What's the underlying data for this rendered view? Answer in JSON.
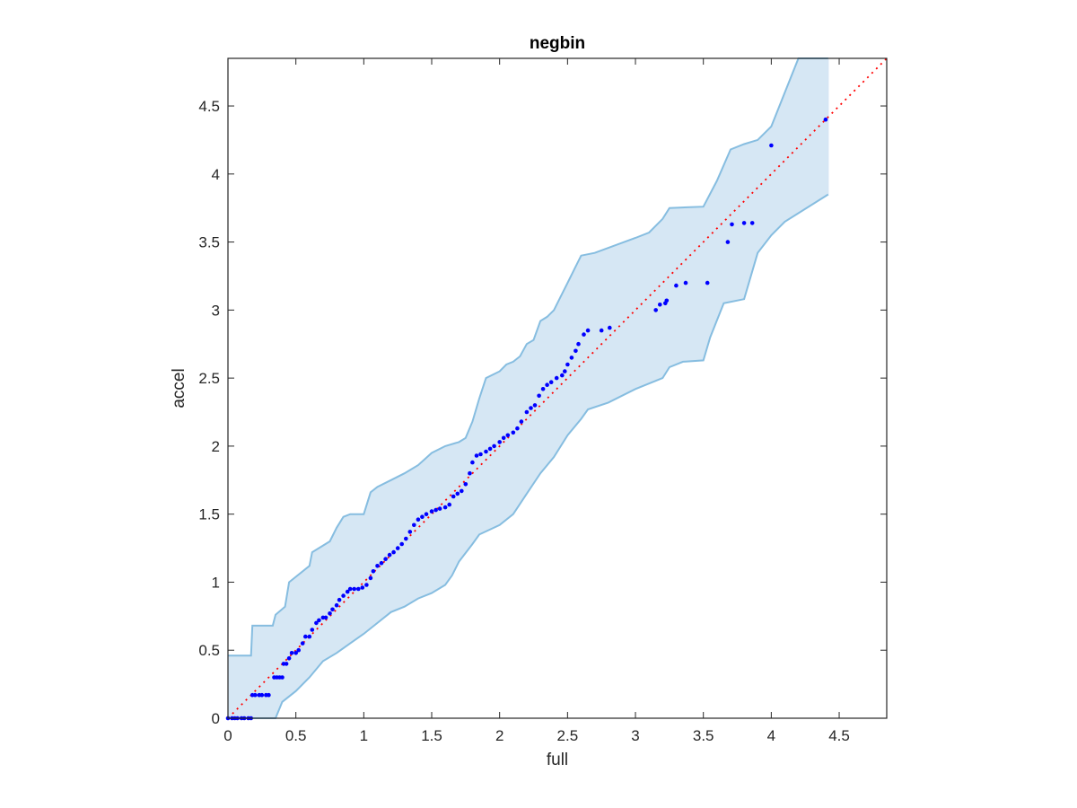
{
  "chart_data": {
    "type": "scatter",
    "title": "negbin",
    "xlabel": "full",
    "ylabel": "accel",
    "xlim": [
      0,
      4.85
    ],
    "ylim": [
      0,
      4.85
    ],
    "xticks": [
      "0",
      "0.5",
      "1",
      "1.5",
      "2",
      "2.5",
      "3",
      "3.5",
      "4",
      "4.5"
    ],
    "yticks": [
      "0",
      "0.5",
      "1",
      "1.5",
      "2",
      "2.5",
      "3",
      "3.5",
      "4",
      "4.5"
    ],
    "grid": false,
    "reference_line": {
      "from": [
        0,
        0
      ],
      "to": [
        4.85,
        4.85
      ],
      "style": "dotted",
      "color": "#ff0000"
    },
    "band": {
      "fill": "#d6e7f4",
      "edge": "#86bde0",
      "upper": [
        [
          0,
          0.46
        ],
        [
          0.17,
          0.46
        ],
        [
          0.18,
          0.68
        ],
        [
          0.33,
          0.68
        ],
        [
          0.35,
          0.76
        ],
        [
          0.42,
          0.82
        ],
        [
          0.45,
          1.0
        ],
        [
          0.6,
          1.12
        ],
        [
          0.62,
          1.22
        ],
        [
          0.75,
          1.3
        ],
        [
          0.8,
          1.4
        ],
        [
          0.85,
          1.48
        ],
        [
          0.9,
          1.5
        ],
        [
          1.0,
          1.5
        ],
        [
          1.05,
          1.66
        ],
        [
          1.1,
          1.7
        ],
        [
          1.2,
          1.75
        ],
        [
          1.3,
          1.8
        ],
        [
          1.4,
          1.86
        ],
        [
          1.5,
          1.95
        ],
        [
          1.6,
          2.0
        ],
        [
          1.7,
          2.03
        ],
        [
          1.75,
          2.06
        ],
        [
          1.8,
          2.18
        ],
        [
          1.85,
          2.35
        ],
        [
          1.9,
          2.5
        ],
        [
          2.0,
          2.55
        ],
        [
          2.05,
          2.6
        ],
        [
          2.1,
          2.62
        ],
        [
          2.15,
          2.66
        ],
        [
          2.2,
          2.75
        ],
        [
          2.25,
          2.78
        ],
        [
          2.3,
          2.92
        ],
        [
          2.35,
          2.95
        ],
        [
          2.4,
          3.0
        ],
        [
          2.45,
          3.1
        ],
        [
          2.5,
          3.2
        ],
        [
          2.55,
          3.3
        ],
        [
          2.6,
          3.4
        ],
        [
          2.7,
          3.42
        ],
        [
          3.0,
          3.53
        ],
        [
          3.1,
          3.57
        ],
        [
          3.2,
          3.67
        ],
        [
          3.25,
          3.75
        ],
        [
          3.5,
          3.76
        ],
        [
          3.6,
          3.95
        ],
        [
          3.7,
          4.18
        ],
        [
          3.8,
          4.22
        ],
        [
          3.9,
          4.25
        ],
        [
          4.0,
          4.35
        ],
        [
          4.1,
          4.6
        ],
        [
          4.2,
          4.85
        ],
        [
          4.42,
          4.85
        ]
      ],
      "lower": [
        [
          0,
          0
        ],
        [
          0.35,
          0
        ],
        [
          0.4,
          0.12
        ],
        [
          0.5,
          0.2
        ],
        [
          0.6,
          0.3
        ],
        [
          0.7,
          0.42
        ],
        [
          0.8,
          0.48
        ],
        [
          0.9,
          0.55
        ],
        [
          1.0,
          0.62
        ],
        [
          1.1,
          0.7
        ],
        [
          1.2,
          0.78
        ],
        [
          1.3,
          0.82
        ],
        [
          1.4,
          0.88
        ],
        [
          1.5,
          0.92
        ],
        [
          1.6,
          0.98
        ],
        [
          1.65,
          1.05
        ],
        [
          1.7,
          1.15
        ],
        [
          1.8,
          1.28
        ],
        [
          1.85,
          1.35
        ],
        [
          2.0,
          1.42
        ],
        [
          2.1,
          1.5
        ],
        [
          2.2,
          1.65
        ],
        [
          2.3,
          1.8
        ],
        [
          2.4,
          1.92
        ],
        [
          2.5,
          2.08
        ],
        [
          2.6,
          2.2
        ],
        [
          2.65,
          2.27
        ],
        [
          2.8,
          2.32
        ],
        [
          3.0,
          2.42
        ],
        [
          3.2,
          2.5
        ],
        [
          3.25,
          2.58
        ],
        [
          3.35,
          2.62
        ],
        [
          3.5,
          2.63
        ],
        [
          3.55,
          2.8
        ],
        [
          3.65,
          3.05
        ],
        [
          3.8,
          3.08
        ],
        [
          3.9,
          3.42
        ],
        [
          4.0,
          3.55
        ],
        [
          4.1,
          3.65
        ],
        [
          4.42,
          3.85
        ]
      ]
    },
    "series": [
      {
        "color": "#0000ff",
        "points": [
          [
            0,
            0
          ],
          [
            0.03,
            0
          ],
          [
            0.05,
            0
          ],
          [
            0.07,
            0
          ],
          [
            0.1,
            0
          ],
          [
            0.12,
            0
          ],
          [
            0.15,
            0
          ],
          [
            0.17,
            0
          ],
          [
            0.18,
            0.17
          ],
          [
            0.2,
            0.17
          ],
          [
            0.23,
            0.17
          ],
          [
            0.25,
            0.17
          ],
          [
            0.28,
            0.17
          ],
          [
            0.3,
            0.17
          ],
          [
            0.34,
            0.3
          ],
          [
            0.36,
            0.3
          ],
          [
            0.38,
            0.3
          ],
          [
            0.4,
            0.3
          ],
          [
            0.41,
            0.4
          ],
          [
            0.43,
            0.4
          ],
          [
            0.45,
            0.44
          ],
          [
            0.47,
            0.48
          ],
          [
            0.5,
            0.48
          ],
          [
            0.52,
            0.5
          ],
          [
            0.55,
            0.55
          ],
          [
            0.57,
            0.6
          ],
          [
            0.6,
            0.6
          ],
          [
            0.62,
            0.65
          ],
          [
            0.65,
            0.7
          ],
          [
            0.67,
            0.72
          ],
          [
            0.7,
            0.74
          ],
          [
            0.72,
            0.74
          ],
          [
            0.75,
            0.77
          ],
          [
            0.77,
            0.8
          ],
          [
            0.8,
            0.83
          ],
          [
            0.82,
            0.87
          ],
          [
            0.85,
            0.9
          ],
          [
            0.88,
            0.93
          ],
          [
            0.9,
            0.95
          ],
          [
            0.93,
            0.95
          ],
          [
            0.96,
            0.95
          ],
          [
            0.99,
            0.96
          ],
          [
            1.02,
            0.98
          ],
          [
            1.05,
            1.03
          ],
          [
            1.07,
            1.08
          ],
          [
            1.1,
            1.12
          ],
          [
            1.13,
            1.14
          ],
          [
            1.16,
            1.17
          ],
          [
            1.19,
            1.2
          ],
          [
            1.22,
            1.22
          ],
          [
            1.25,
            1.25
          ],
          [
            1.28,
            1.28
          ],
          [
            1.31,
            1.32
          ],
          [
            1.34,
            1.37
          ],
          [
            1.37,
            1.42
          ],
          [
            1.4,
            1.46
          ],
          [
            1.43,
            1.48
          ],
          [
            1.46,
            1.5
          ],
          [
            1.5,
            1.52
          ],
          [
            1.53,
            1.53
          ],
          [
            1.56,
            1.54
          ],
          [
            1.6,
            1.55
          ],
          [
            1.63,
            1.57
          ],
          [
            1.66,
            1.63
          ],
          [
            1.69,
            1.65
          ],
          [
            1.72,
            1.67
          ],
          [
            1.75,
            1.72
          ],
          [
            1.78,
            1.8
          ],
          [
            1.8,
            1.88
          ],
          [
            1.83,
            1.93
          ],
          [
            1.86,
            1.94
          ],
          [
            1.9,
            1.96
          ],
          [
            1.93,
            1.98
          ],
          [
            1.96,
            2.0
          ],
          [
            2.0,
            2.03
          ],
          [
            2.03,
            2.06
          ],
          [
            2.06,
            2.08
          ],
          [
            2.1,
            2.1
          ],
          [
            2.13,
            2.13
          ],
          [
            2.16,
            2.18
          ],
          [
            2.2,
            2.25
          ],
          [
            2.23,
            2.28
          ],
          [
            2.26,
            2.3
          ],
          [
            2.29,
            2.37
          ],
          [
            2.32,
            2.42
          ],
          [
            2.35,
            2.45
          ],
          [
            2.38,
            2.47
          ],
          [
            2.42,
            2.5
          ],
          [
            2.46,
            2.52
          ],
          [
            2.48,
            2.55
          ],
          [
            2.5,
            2.6
          ],
          [
            2.53,
            2.65
          ],
          [
            2.56,
            2.7
          ],
          [
            2.58,
            2.75
          ],
          [
            2.62,
            2.82
          ],
          [
            2.65,
            2.85
          ],
          [
            2.75,
            2.85
          ],
          [
            2.81,
            2.87
          ],
          [
            3.15,
            3.0
          ],
          [
            3.18,
            3.04
          ],
          [
            3.22,
            3.05
          ],
          [
            3.23,
            3.07
          ],
          [
            3.3,
            3.18
          ],
          [
            3.37,
            3.2
          ],
          [
            3.53,
            3.2
          ],
          [
            3.68,
            3.5
          ],
          [
            3.71,
            3.63
          ],
          [
            3.8,
            3.64
          ],
          [
            3.86,
            3.64
          ],
          [
            4.0,
            4.21
          ],
          [
            4.4,
            4.4
          ]
        ]
      }
    ]
  }
}
